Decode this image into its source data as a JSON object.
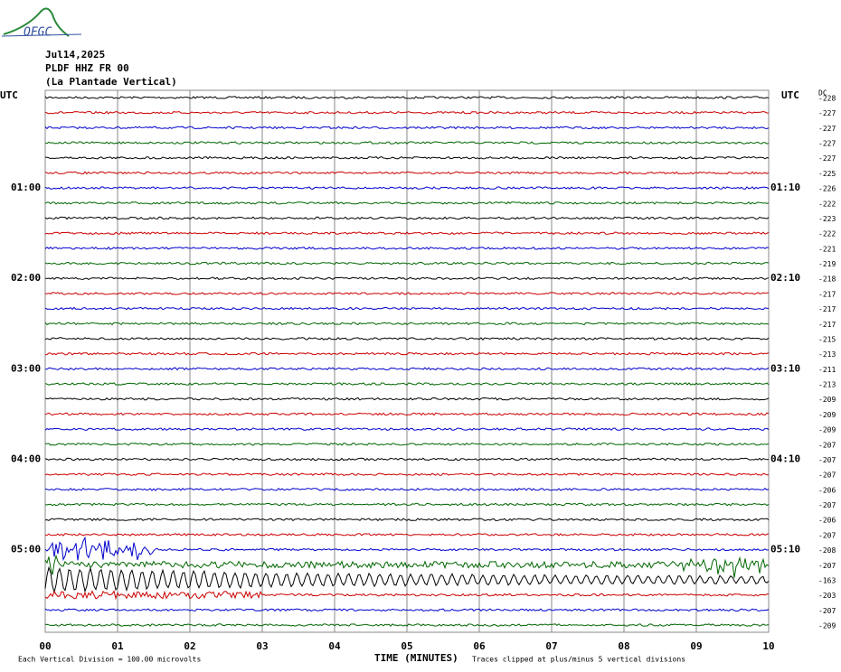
{
  "logo": "OFGC",
  "header": {
    "date": "Jul14,2025",
    "station": "PLDF HHZ FR 00",
    "location": "(La Plantade Vertical)"
  },
  "left_label": "UTC",
  "right_label": "UTC",
  "dc_label": "DC",
  "hour_labels_left": [
    "01:00",
    "02:00",
    "03:00",
    "04:00",
    "05:00"
  ],
  "hour_labels_right": [
    "01:10",
    "02:10",
    "03:10",
    "04:10",
    "05:10"
  ],
  "dc_values": [
    -228,
    -227,
    -227,
    -227,
    -227,
    -225,
    -226,
    -222,
    -223,
    -222,
    -221,
    -219,
    -218,
    -217,
    -217,
    -217,
    -215,
    -213,
    -211,
    -213,
    -209,
    -209,
    -209,
    -207,
    -207,
    -207,
    -206,
    -207,
    -206,
    -207,
    -208,
    -207,
    -163,
    -203,
    -207,
    -209
  ],
  "trace_colors": [
    "#000000",
    "#cc0000",
    "#0000cc",
    "#006600"
  ],
  "x_ticks": [
    "00",
    "01",
    "02",
    "03",
    "04",
    "05",
    "06",
    "07",
    "08",
    "09",
    "10"
  ],
  "x_label": "TIME (MINUTES)",
  "footer_left": "Each Vertical Division =  100.00 microvolts",
  "footer_right": "Traces clipped at plus/minus 5 vertical divisions"
}
